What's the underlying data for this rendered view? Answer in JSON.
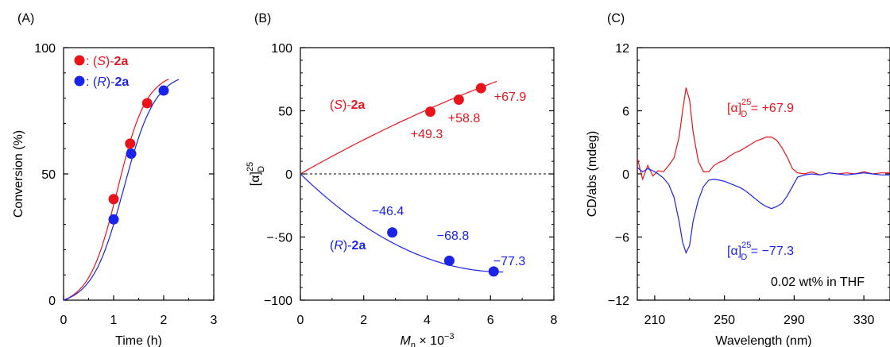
{
  "colors": {
    "red": "#e8141c",
    "blue": "#1a23e6",
    "axis": "#000000"
  },
  "chart_data": [
    {
      "panel_label": "(A)",
      "type": "scatter",
      "xlabel": "Time (h)",
      "ylabel": "Conversion (%)",
      "xlim": [
        0,
        3
      ],
      "ylim": [
        0,
        100
      ],
      "xticks": [
        0,
        1,
        2,
        3
      ],
      "yticks": [
        0,
        50,
        100
      ],
      "legend": {
        "placement": "top-left",
        "entries": [
          {
            "marker_color": "red",
            "sep": ": (",
            "italic": "S",
            "mid": ")-",
            "bold": "2a"
          },
          {
            "marker_color": "blue",
            "sep": ": (",
            "italic": "R",
            "mid": ")-",
            "bold": "2a"
          }
        ]
      },
      "series": [
        {
          "name": "(S)-2a",
          "color": "red",
          "points": [
            [
              1.0,
              40
            ],
            [
              1.33,
              62
            ],
            [
              1.67,
              78
            ]
          ],
          "fit": {
            "model": "sigmoid",
            "x0": 1.08,
            "k": 3.5,
            "ymax": 90,
            "x_range": [
              0,
              2.1
            ]
          }
        },
        {
          "name": "(R)-2a",
          "color": "blue",
          "points": [
            [
              1.0,
              32
            ],
            [
              1.35,
              58
            ],
            [
              2.0,
              83
            ]
          ],
          "fit": {
            "model": "sigmoid",
            "x0": 1.2,
            "k": 3.2,
            "ymax": 90,
            "x_range": [
              0,
              2.3
            ]
          }
        }
      ]
    },
    {
      "panel_label": "(B)",
      "type": "scatter",
      "xlabel_italic": "M",
      "xlabel_sub": "n",
      "xlabel_rest": " × 10",
      "xlabel_sup": "−3",
      "ylabel_main": "[α]",
      "ylabel_sup": "25",
      "ylabel_sub": "D",
      "xlim": [
        0,
        8
      ],
      "ylim": [
        -100,
        100
      ],
      "xticks": [
        0,
        2,
        4,
        6,
        8
      ],
      "yticks": [
        -100,
        -50,
        0,
        50,
        100
      ],
      "ytick_labels": [
        "−100",
        "−·50",
        "0",
        "50",
        "100"
      ],
      "zero_line": true,
      "series": [
        {
          "name": "(S)-2a",
          "color": "red",
          "label_italic": "S",
          "label_bold": "2a",
          "points": [
            [
              4.1,
              49.3
            ],
            [
              5.0,
              58.8
            ],
            [
              5.7,
              67.9
            ]
          ],
          "point_labels": [
            "+49.3",
            "+58.8",
            "+67.9"
          ],
          "fit": {
            "model": "quadratic",
            "coef": [
              0,
              14.3,
              -0.4
            ],
            "x_range": [
              0,
              6.2
            ]
          }
        },
        {
          "name": "(R)-2a",
          "color": "blue",
          "label_italic": "R",
          "label_bold": "2a",
          "points": [
            [
              2.9,
              -46.4
            ],
            [
              4.7,
              -68.8
            ],
            [
              6.1,
              -77.3
            ]
          ],
          "point_labels": [
            "−46.4",
            "−68.8",
            "−77.3"
          ],
          "fit": {
            "model": "quadratic",
            "coef": [
              0,
              -24.3,
              1.9
            ],
            "x_range": [
              0,
              6.4
            ]
          }
        }
      ]
    },
    {
      "panel_label": "(C)",
      "type": "line",
      "xlabel": "Wavelength (nm)",
      "ylabel": "CD/abs (mdeg)",
      "xlim": [
        200,
        345
      ],
      "ylim": [
        -12,
        12
      ],
      "xticks": [
        210,
        250,
        290,
        330
      ],
      "yticks": [
        -12,
        -6,
        0,
        6,
        12
      ],
      "ytick_labels": [
        "−12",
        "−6",
        "0",
        "6",
        "12"
      ],
      "annotation_text": "0.02 wt% in THF",
      "series": [
        {
          "name": "red spectrum",
          "color": "red",
          "label_main": "[α]",
          "label_sup": "25",
          "label_sub": "D",
          "label_value": " = +67.9",
          "points": [
            [
              200,
              1.5
            ],
            [
              203,
              -0.5
            ],
            [
              206,
              0.8
            ],
            [
              209,
              -0.2
            ],
            [
              212,
              0.3
            ],
            [
              215,
              0.2
            ],
            [
              218,
              0.8
            ],
            [
              221,
              1.5
            ],
            [
              224,
              3.5
            ],
            [
              226,
              6.0
            ],
            [
              228,
              8.2
            ],
            [
              230,
              7.0
            ],
            [
              232,
              4.0
            ],
            [
              235,
              1.2
            ],
            [
              238,
              0.2
            ],
            [
              241,
              0.2
            ],
            [
              244,
              0.8
            ],
            [
              247,
              1.1
            ],
            [
              250,
              1.3
            ],
            [
              253,
              1.7
            ],
            [
              256,
              2.0
            ],
            [
              259,
              2.2
            ],
            [
              262,
              2.5
            ],
            [
              265,
              2.8
            ],
            [
              268,
              3.1
            ],
            [
              271,
              3.3
            ],
            [
              274,
              3.5
            ],
            [
              277,
              3.5
            ],
            [
              280,
              3.2
            ],
            [
              283,
              2.5
            ],
            [
              286,
              1.6
            ],
            [
              289,
              0.5
            ],
            [
              292,
              0.1
            ],
            [
              296,
              0.0
            ],
            [
              300,
              0.2
            ],
            [
              305,
              -0.1
            ],
            [
              310,
              0.1
            ],
            [
              315,
              0.0
            ],
            [
              320,
              0.1
            ],
            [
              325,
              0.0
            ],
            [
              330,
              0.2
            ],
            [
              335,
              0.0
            ],
            [
              340,
              0.1
            ],
            [
              345,
              0.1
            ]
          ]
        },
        {
          "name": "blue spectrum",
          "color": "blue",
          "label_main": "[α]",
          "label_sup": "25",
          "label_sub": "D",
          "label_value": " = −77.3",
          "points": [
            [
              200,
              0.6
            ],
            [
              203,
              0.2
            ],
            [
              206,
              0.5
            ],
            [
              209,
              0.3
            ],
            [
              212,
              0.0
            ],
            [
              215,
              -0.4
            ],
            [
              218,
              -1.0
            ],
            [
              221,
              -2.2
            ],
            [
              224,
              -4.5
            ],
            [
              226,
              -6.5
            ],
            [
              228,
              -7.5
            ],
            [
              230,
              -6.8
            ],
            [
              232,
              -4.5
            ],
            [
              235,
              -2.5
            ],
            [
              238,
              -1.2
            ],
            [
              241,
              -0.6
            ],
            [
              244,
              -0.5
            ],
            [
              247,
              -0.6
            ],
            [
              250,
              -0.7
            ],
            [
              253,
              -0.9
            ],
            [
              256,
              -1.1
            ],
            [
              259,
              -1.3
            ],
            [
              262,
              -1.6
            ],
            [
              265,
              -2.0
            ],
            [
              268,
              -2.4
            ],
            [
              271,
              -2.8
            ],
            [
              274,
              -3.1
            ],
            [
              277,
              -3.3
            ],
            [
              280,
              -3.1
            ],
            [
              283,
              -2.8
            ],
            [
              286,
              -2.1
            ],
            [
              289,
              -1.2
            ],
            [
              292,
              -0.3
            ],
            [
              296,
              -0.1
            ],
            [
              300,
              0.0
            ],
            [
              305,
              -0.1
            ],
            [
              310,
              0.1
            ],
            [
              315,
              0.0
            ],
            [
              320,
              -0.1
            ],
            [
              325,
              0.0
            ],
            [
              330,
              0.1
            ],
            [
              335,
              0.0
            ],
            [
              340,
              -0.1
            ],
            [
              345,
              -0.1
            ]
          ]
        }
      ]
    }
  ]
}
